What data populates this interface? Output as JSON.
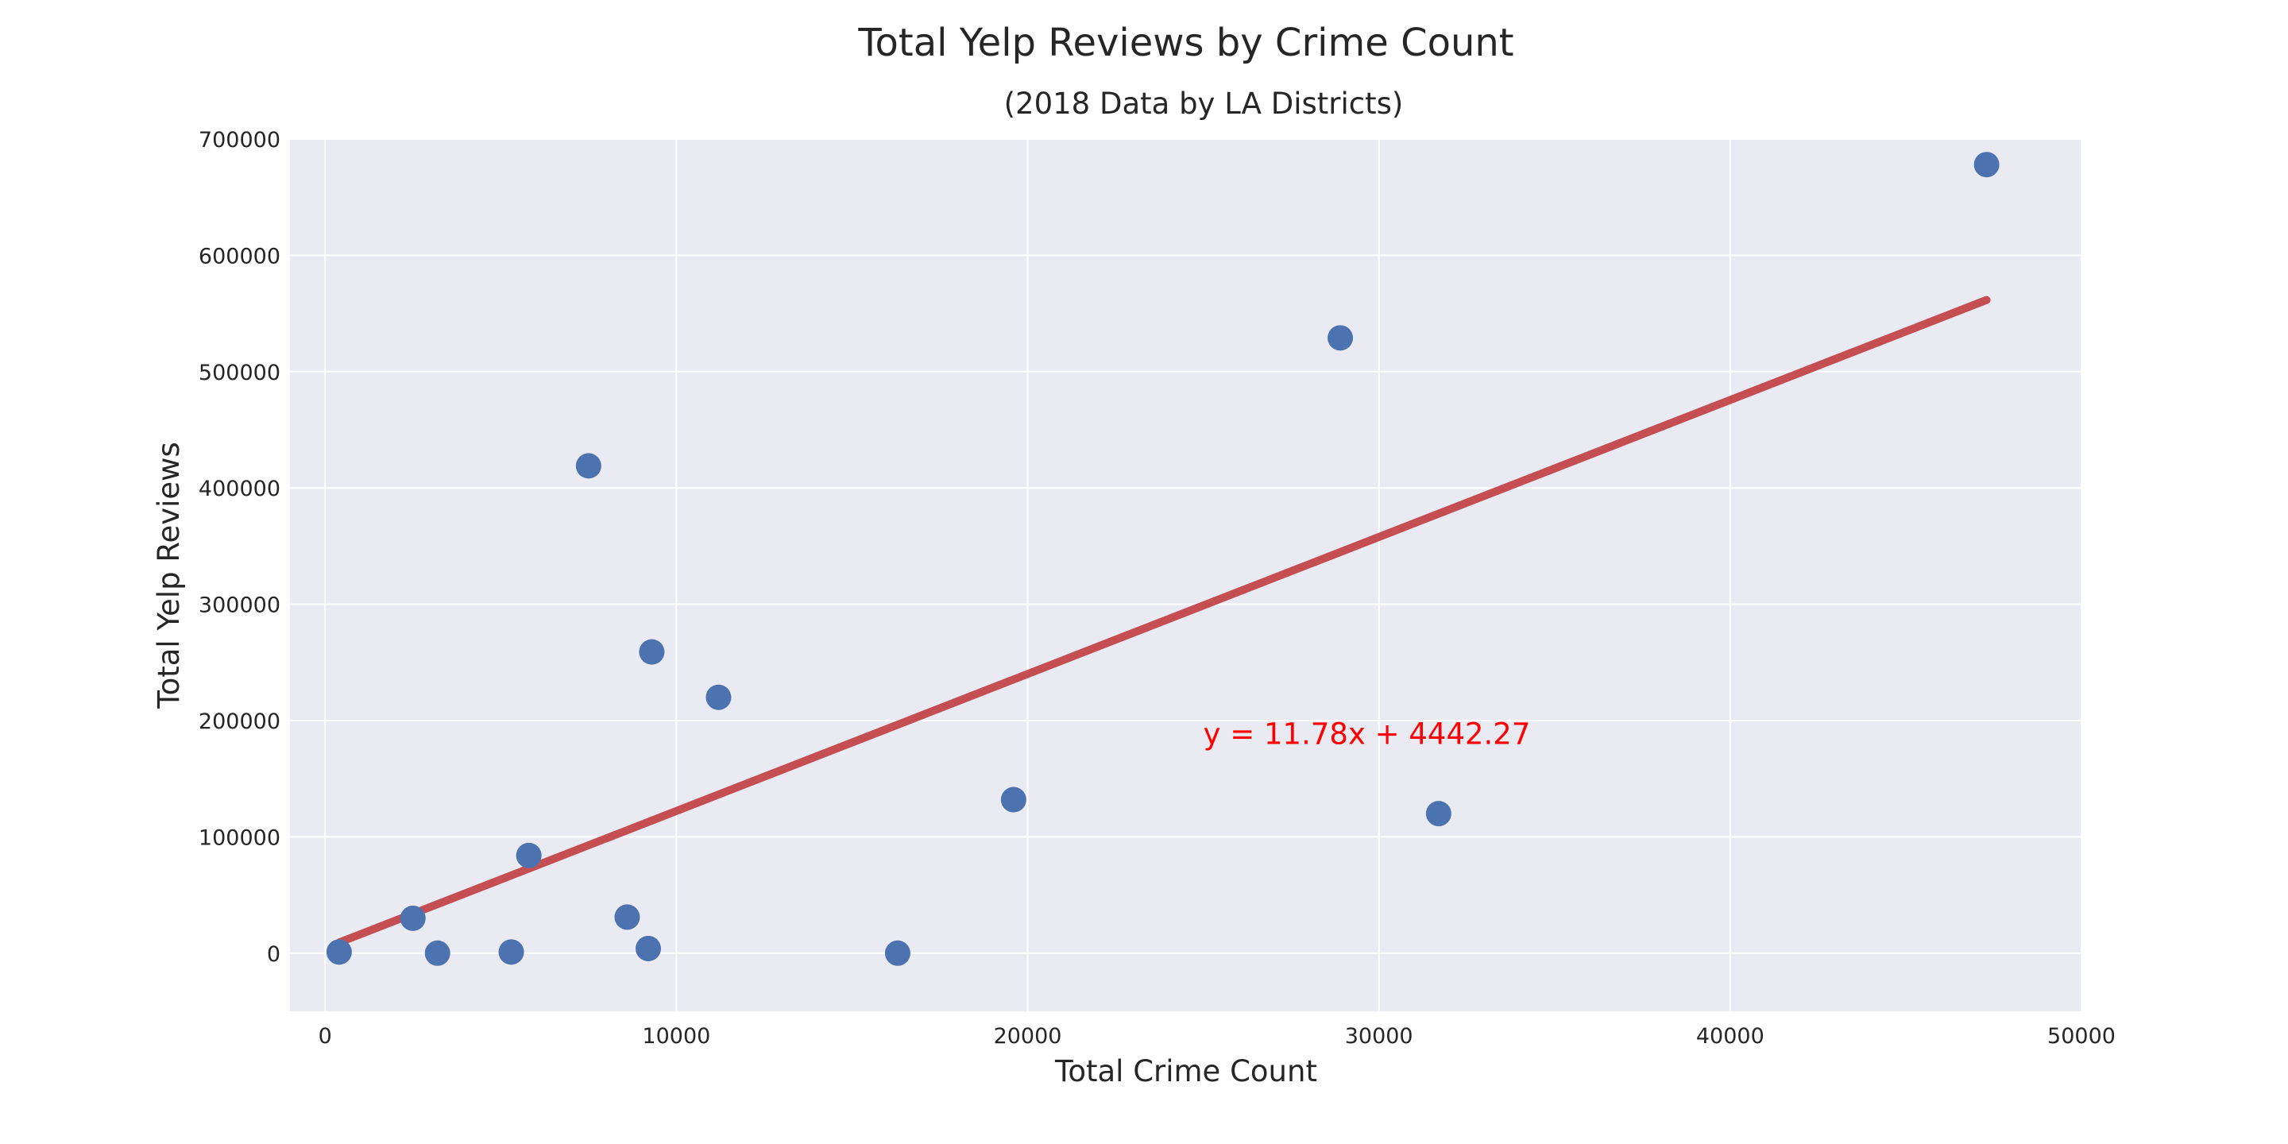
{
  "chart_data": {
    "type": "scatter",
    "title": "Total Yelp Reviews by Crime Count",
    "subtitle": "(2018 Data by LA Districts)",
    "xlabel": "Total Crime Count",
    "ylabel": "Total Yelp Reviews",
    "xlim": [
      -1000,
      50000
    ],
    "ylim": [
      -50000,
      700000
    ],
    "x_ticks": [
      0,
      10000,
      20000,
      30000,
      40000,
      50000
    ],
    "x_tick_labels": [
      "0",
      "10000",
      "20000",
      "30000",
      "40000",
      "50000"
    ],
    "y_ticks": [
      0,
      100000,
      200000,
      300000,
      400000,
      500000,
      600000,
      700000
    ],
    "y_tick_labels": [
      "0",
      "100000",
      "200000",
      "300000",
      "400000",
      "500000",
      "600000",
      "700000"
    ],
    "grid": true,
    "points": [
      {
        "x": 400,
        "y": 1000
      },
      {
        "x": 2500,
        "y": 30000
      },
      {
        "x": 3200,
        "y": 0
      },
      {
        "x": 5300,
        "y": 1000
      },
      {
        "x": 5800,
        "y": 84000
      },
      {
        "x": 7500,
        "y": 419000
      },
      {
        "x": 8600,
        "y": 31000
      },
      {
        "x": 9200,
        "y": 4000
      },
      {
        "x": 9300,
        "y": 259000
      },
      {
        "x": 11200,
        "y": 220000
      },
      {
        "x": 16300,
        "y": 0
      },
      {
        "x": 19600,
        "y": 132000
      },
      {
        "x": 28900,
        "y": 529000
      },
      {
        "x": 31700,
        "y": 120000
      },
      {
        "x": 47300,
        "y": 678000
      }
    ],
    "regression": {
      "slope": 11.78,
      "intercept": 4442.27,
      "x_range": [
        400,
        47300
      ],
      "equation_label": "y = 11.78x + 4442.27",
      "equation_x": 25000,
      "equation_y": 180000
    },
    "colors": {
      "background": "#eaeaf2",
      "grid": "#ffffff",
      "points": "#4c72b0",
      "line": "#c44e52",
      "equation": "#ff0000"
    }
  }
}
